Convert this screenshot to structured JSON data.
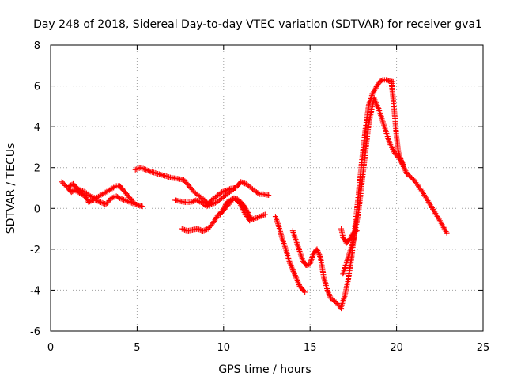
{
  "chart_data": {
    "type": "scatter",
    "title": "Day 248 of 2018, Sidereal Day-to-day VTEC variation (SDTVAR) for receiver gva1",
    "xlabel": "GPS time / hours",
    "ylabel": "SDTVAR / TECUs",
    "xlim": [
      0,
      25
    ],
    "ylim": [
      -6,
      8
    ],
    "xticks": [
      0,
      5,
      10,
      15,
      20,
      25
    ],
    "yticks": [
      -6,
      -4,
      -2,
      0,
      2,
      4,
      6,
      8
    ],
    "grid": true,
    "marker": "+",
    "color": "#ff0000",
    "segments": [
      {
        "x": [
          0.65,
          1.0,
          1.2,
          1.4,
          1.6,
          1.8,
          2.0,
          2.2,
          2.4,
          2.6,
          2.9,
          3.2,
          3.5,
          3.8,
          4.0,
          4.3,
          4.6,
          4.9,
          5.1,
          5.3
        ],
        "y": [
          1.3,
          1.0,
          0.8,
          0.9,
          0.8,
          0.7,
          0.6,
          0.3,
          0.4,
          0.4,
          0.3,
          0.2,
          0.5,
          0.6,
          0.5,
          0.4,
          0.3,
          0.2,
          0.15,
          0.1
        ]
      },
      {
        "x": [
          1.1,
          1.3,
          1.5,
          1.7,
          2.0,
          2.3,
          2.6,
          3.0,
          3.4,
          3.8,
          4.0,
          4.2,
          4.5,
          4.8
        ],
        "y": [
          1.1,
          1.2,
          1.0,
          0.9,
          0.8,
          0.6,
          0.5,
          0.7,
          0.9,
          1.1,
          1.1,
          0.9,
          0.6,
          0.3
        ]
      },
      {
        "x": [
          4.9,
          5.2,
          5.5,
          5.8,
          6.2,
          6.6,
          7.0,
          7.4,
          7.7,
          8.0,
          8.3,
          8.6,
          8.9,
          9.1,
          9.3,
          9.6,
          9.9,
          10.2,
          10.5,
          10.7
        ],
        "y": [
          1.9,
          2.0,
          1.9,
          1.8,
          1.7,
          1.6,
          1.5,
          1.45,
          1.4,
          1.1,
          0.8,
          0.6,
          0.4,
          0.2,
          0.4,
          0.6,
          0.8,
          0.9,
          1.0,
          1.0
        ]
      },
      {
        "x": [
          7.2,
          7.5,
          7.8,
          8.1,
          8.4,
          8.7,
          9.0,
          9.3,
          9.6,
          9.9,
          10.2,
          10.5,
          10.8,
          11.0,
          11.3,
          11.6,
          11.9,
          12.1,
          12.3,
          12.6
        ],
        "y": [
          0.4,
          0.35,
          0.3,
          0.3,
          0.4,
          0.3,
          0.1,
          0.2,
          0.3,
          0.5,
          0.7,
          0.9,
          1.1,
          1.3,
          1.2,
          1.0,
          0.8,
          0.7,
          0.7,
          0.65
        ]
      },
      {
        "x": [
          7.6,
          7.9,
          8.2,
          8.5,
          8.8,
          9.1,
          9.4,
          9.7,
          10.0,
          10.3,
          10.6,
          10.9,
          11.2,
          11.5,
          11.8,
          12.1,
          12.4
        ],
        "y": [
          -1.0,
          -1.1,
          -1.05,
          -1.0,
          -1.1,
          -1.0,
          -0.7,
          -0.3,
          -0.1,
          0.2,
          0.5,
          0.3,
          -0.2,
          -0.6,
          -0.5,
          -0.4,
          -0.3
        ]
      },
      {
        "x": [
          9.8,
          10.0,
          10.2,
          10.4,
          10.6,
          10.8,
          11.0,
          11.2,
          11.4,
          11.6
        ],
        "y": [
          -0.3,
          0.0,
          0.3,
          0.4,
          0.5,
          0.45,
          0.3,
          0.1,
          -0.2,
          -0.5
        ]
      },
      {
        "x": [
          13.0,
          13.2,
          13.4,
          13.6,
          13.8,
          14.0,
          14.2,
          14.4,
          14.6,
          14.7
        ],
        "y": [
          -0.4,
          -0.9,
          -1.5,
          -2.0,
          -2.6,
          -3.0,
          -3.4,
          -3.8,
          -4.0,
          -4.1
        ]
      },
      {
        "x": [
          14.0,
          14.2,
          14.4,
          14.6,
          14.8,
          15.0,
          15.2,
          15.4,
          15.6,
          15.8,
          16.0,
          16.2,
          16.5,
          16.8
        ],
        "y": [
          -1.1,
          -1.6,
          -2.1,
          -2.6,
          -2.8,
          -2.7,
          -2.2,
          -2.0,
          -2.4,
          -3.4,
          -4.0,
          -4.4,
          -4.6,
          -4.9
        ]
      },
      {
        "x": [
          16.8,
          17.0,
          17.2,
          17.4,
          17.6,
          17.8,
          18.0,
          18.2,
          18.4,
          18.6,
          18.8,
          19.0,
          19.2,
          19.4,
          19.6,
          19.8
        ],
        "y": [
          -4.8,
          -4.3,
          -3.5,
          -2.4,
          -0.9,
          0.7,
          2.4,
          3.9,
          5.1,
          5.6,
          5.9,
          6.2,
          6.3,
          6.3,
          6.25,
          6.2
        ]
      },
      {
        "x": [
          16.8,
          16.9,
          17.1,
          17.3,
          17.5,
          17.7
        ],
        "y": [
          -1.0,
          -1.4,
          -1.7,
          -1.5,
          -1.2,
          -1.1
        ]
      },
      {
        "x": [
          16.9,
          17.2,
          17.5,
          17.8,
          18.1,
          18.4,
          18.7,
          19.0,
          19.3,
          19.6,
          19.9,
          20.2,
          20.6,
          21.0,
          21.5,
          22.0,
          22.5,
          22.9
        ],
        "y": [
          -3.2,
          -2.4,
          -1.6,
          -0.2,
          2.0,
          4.2,
          5.4,
          4.8,
          4.0,
          3.2,
          2.7,
          2.4,
          1.7,
          1.4,
          0.8,
          0.1,
          -0.6,
          -1.2
        ]
      },
      {
        "x": [
          19.7,
          19.8,
          19.9,
          20.0,
          20.1,
          20.2,
          20.4
        ],
        "y": [
          6.2,
          5.4,
          4.5,
          3.5,
          2.8,
          2.5,
          2.1
        ]
      }
    ]
  }
}
